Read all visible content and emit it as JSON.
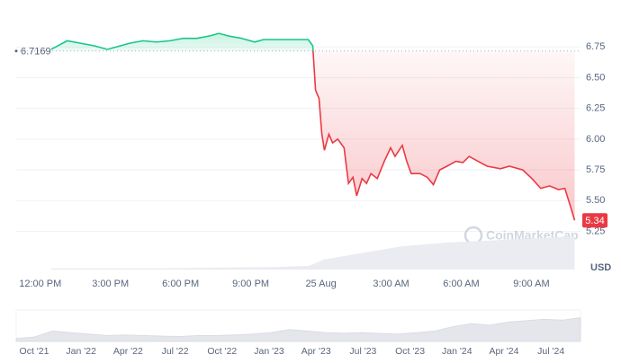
{
  "chart_data": {
    "type": "line",
    "x": [
      0.46,
      0.76,
      1.15,
      1.72,
      2.29,
      2.87,
      3.25,
      3.82,
      4.39,
      4.97,
      5.54,
      6.11,
      6.69,
      7.26,
      7.64,
      8.03,
      8.6,
      9.17,
      9.55,
      10.13,
      10.89,
      11.46,
      11.65,
      11.77,
      11.92,
      12.04,
      12.15,
      12.34,
      12.5,
      12.72,
      12.99,
      13.18,
      13.37,
      13.53,
      13.76,
      13.95,
      14.14,
      14.41,
      14.71,
      14.98,
      15.17,
      15.48,
      15.67,
      15.86,
      16.24,
      16.55,
      16.81,
      17.08,
      17.39,
      17.77,
      18.07,
      18.34,
      18.72,
      19.11,
      19.68,
      20.06,
      20.63,
      21.02,
      21.4,
      21.78,
      22.16,
      22.43,
      22.66,
      22.85
    ],
    "values": [
      6.73,
      6.76,
      6.8,
      6.78,
      6.76,
      6.73,
      6.75,
      6.78,
      6.8,
      6.79,
      6.8,
      6.82,
      6.82,
      6.84,
      6.86,
      6.84,
      6.82,
      6.79,
      6.81,
      6.81,
      6.81,
      6.81,
      6.76,
      6.4,
      6.33,
      6.04,
      5.91,
      6.04,
      5.97,
      6.0,
      5.93,
      5.64,
      5.69,
      5.54,
      5.68,
      5.64,
      5.72,
      5.68,
      5.82,
      5.93,
      5.86,
      5.95,
      5.82,
      5.72,
      5.72,
      5.69,
      5.63,
      5.75,
      5.78,
      5.82,
      5.81,
      5.86,
      5.82,
      5.78,
      5.76,
      5.78,
      5.75,
      5.68,
      5.6,
      5.62,
      5.59,
      5.6,
      5.46,
      5.34
    ],
    "color_above": "#16c784",
    "color_below": "#ea3943",
    "baseline": 6.7169,
    "xlim": [
      -1.03,
      23.1
    ],
    "ylim": [
      4.94,
      7.0
    ],
    "yticks": [
      5.25,
      {
        "value": 5.5,
        "label": "5.50"
      },
      5.75,
      {
        "value": 6.0,
        "label": "6.00"
      },
      6.25,
      {
        "value": 6.5,
        "label": "6.50"
      },
      6.75
    ],
    "xticks": [
      {
        "value": 0,
        "label": "12:00 PM"
      },
      {
        "value": 3,
        "label": "3:00 PM"
      },
      {
        "value": 6,
        "label": "6:00 PM"
      },
      {
        "value": 9,
        "label": "9:00 PM"
      },
      {
        "value": 12,
        "label": "25 Aug"
      },
      {
        "value": 15,
        "label": "3:00 AM"
      },
      {
        "value": 18,
        "label": "6:00 AM"
      },
      {
        "value": 21,
        "label": "9:00 AM"
      }
    ],
    "y_unit": "USD",
    "grid": true,
    "watermark": "CoinMarketCap",
    "volume": {
      "x": [
        0.46,
        5,
        10,
        11.5,
        12.1,
        13.6,
        15.5,
        17.4,
        19.7,
        22.85
      ],
      "values": [
        4.95,
        4.95,
        4.96,
        4.97,
        5.02,
        5.07,
        5.13,
        5.16,
        5.18,
        5.21
      ],
      "color": "#eaecf1"
    },
    "navigator": {
      "categories": [
        "Oct '21",
        "Jan '22",
        "Apr '22",
        "Jul '22",
        "Oct '22",
        "Jan '23",
        "Apr '23",
        "Jul '23",
        "Oct '23",
        "Jan '24",
        "Apr '24",
        "Jul '24"
      ],
      "values": [
        0.1,
        0.15,
        0.35,
        0.3,
        0.25,
        0.2,
        0.22,
        0.2,
        0.18,
        0.17,
        0.2,
        0.2,
        0.22,
        0.25,
        0.3,
        0.4,
        0.35,
        0.3,
        0.28,
        0.3,
        0.27,
        0.25,
        0.3,
        0.35,
        0.5,
        0.6,
        0.55,
        0.65,
        0.7,
        0.75,
        0.72,
        0.8
      ],
      "ylim": [
        0,
        1
      ],
      "color": "#e4e6eb"
    }
  }
}
